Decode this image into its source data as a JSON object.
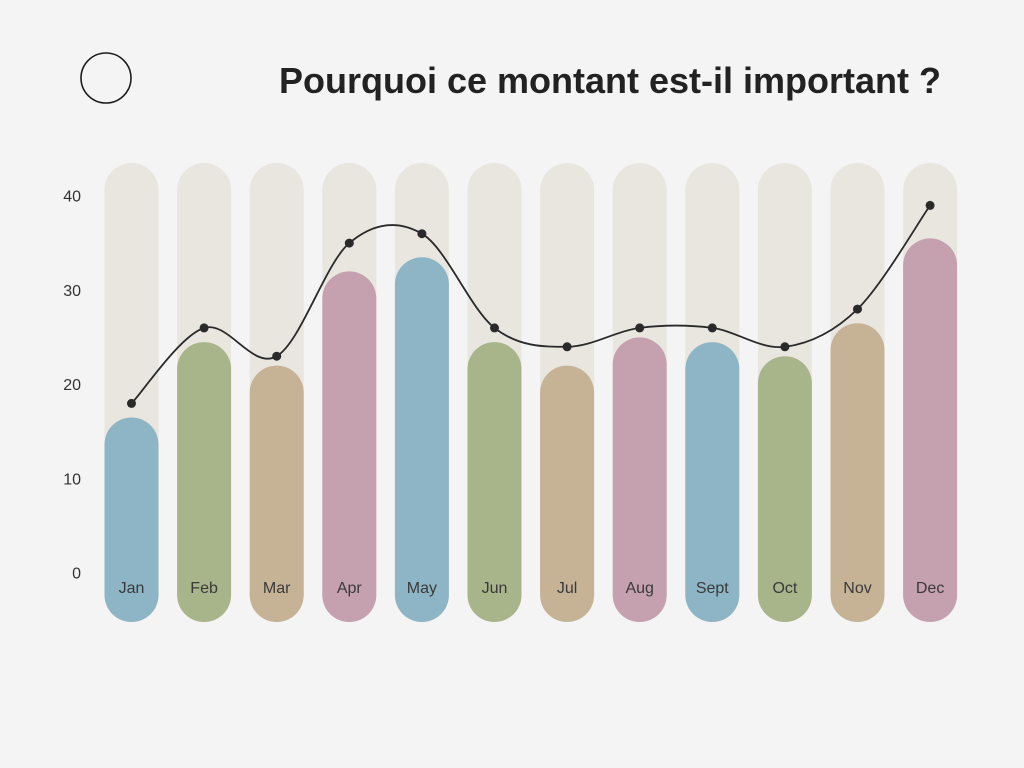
{
  "page": {
    "background": "#f4f4f4",
    "icon": "circle-outline"
  },
  "chart_data": {
    "type": "bar",
    "title": "Pourquoi ce montant est-il important ?",
    "categories": [
      "Jan",
      "Feb",
      "Mar",
      "Apr",
      "May",
      "Jun",
      "Jul",
      "Aug",
      "Sept",
      "Oct",
      "Nov",
      "Dec"
    ],
    "yticks": [
      0,
      10,
      20,
      30,
      40
    ],
    "ylim": [
      0,
      40
    ],
    "grid": false,
    "track_color": "#e9e6e0",
    "series": [
      {
        "type": "bar",
        "values": [
          16.5,
          24.5,
          22,
          32,
          33.5,
          24.5,
          22,
          25,
          24.5,
          23,
          26.5,
          35.5
        ],
        "colors": [
          "#8db5c5",
          "#a8b48a",
          "#c6b295",
          "#c5a0ae",
          "#8db5c5",
          "#a8b48a",
          "#c6b295",
          "#c5a0ae",
          "#8db5c5",
          "#a8b48a",
          "#c6b295",
          "#c5a0ae"
        ]
      },
      {
        "type": "line",
        "values": [
          18,
          26,
          23,
          35,
          36,
          26,
          24,
          26,
          26,
          24,
          28,
          39
        ],
        "color": "#2a2a2a",
        "markers": true,
        "smooth": true
      }
    ]
  }
}
